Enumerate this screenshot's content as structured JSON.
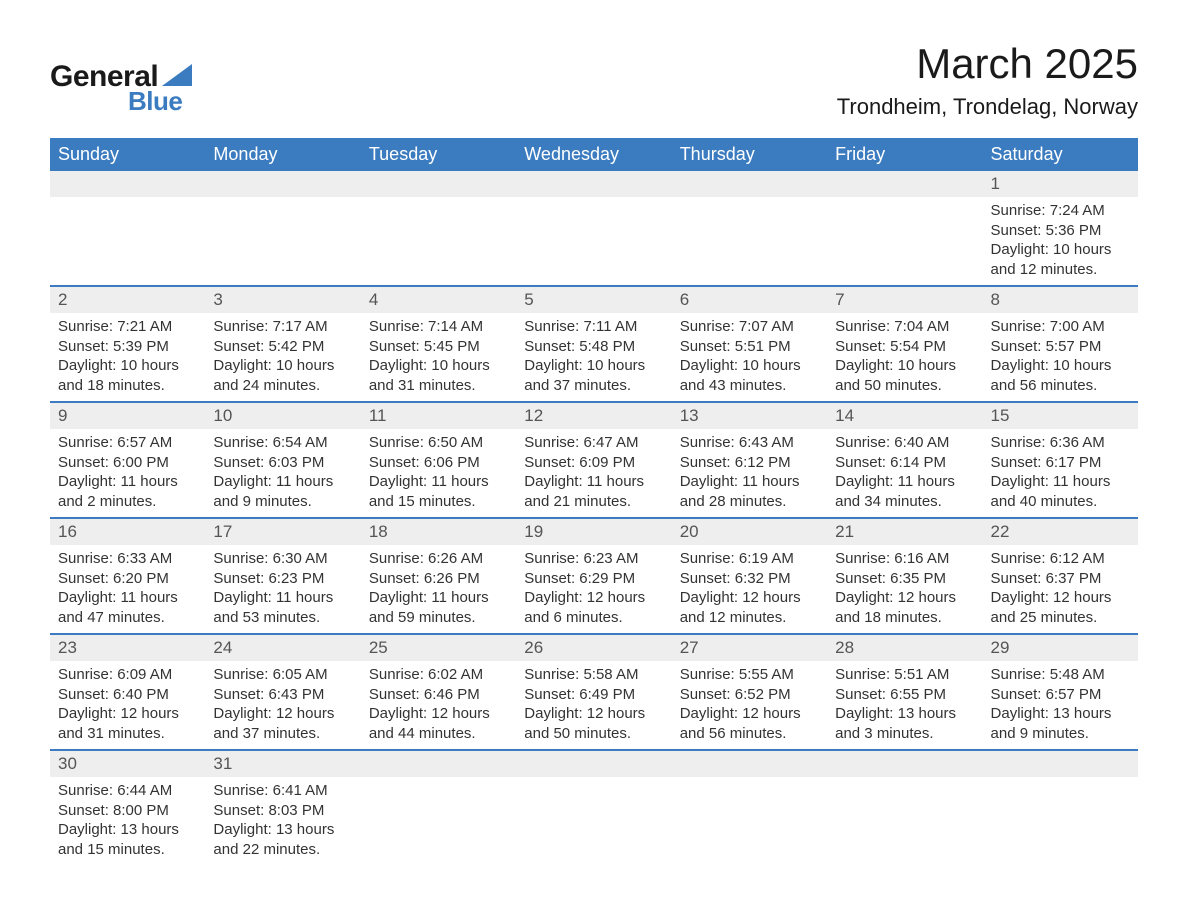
{
  "logo": {
    "text_general": "General",
    "text_blue": "Blue",
    "triangle_color": "#3b7bbf"
  },
  "title": "March 2025",
  "location": "Trondheim, Trondelag, Norway",
  "colors": {
    "header_bg": "#3b7bbf",
    "header_fg": "#ffffff",
    "daynum_bg": "#eeeeee",
    "row_divider": "#3b7bbf"
  },
  "weekdays": [
    "Sunday",
    "Monday",
    "Tuesday",
    "Wednesday",
    "Thursday",
    "Friday",
    "Saturday"
  ],
  "weeks": [
    [
      {
        "empty": true
      },
      {
        "empty": true
      },
      {
        "empty": true
      },
      {
        "empty": true
      },
      {
        "empty": true
      },
      {
        "empty": true
      },
      {
        "num": "1",
        "sunrise": "Sunrise: 7:24 AM",
        "sunset": "Sunset: 5:36 PM",
        "daylight1": "Daylight: 10 hours",
        "daylight2": "and 12 minutes."
      }
    ],
    [
      {
        "num": "2",
        "sunrise": "Sunrise: 7:21 AM",
        "sunset": "Sunset: 5:39 PM",
        "daylight1": "Daylight: 10 hours",
        "daylight2": "and 18 minutes."
      },
      {
        "num": "3",
        "sunrise": "Sunrise: 7:17 AM",
        "sunset": "Sunset: 5:42 PM",
        "daylight1": "Daylight: 10 hours",
        "daylight2": "and 24 minutes."
      },
      {
        "num": "4",
        "sunrise": "Sunrise: 7:14 AM",
        "sunset": "Sunset: 5:45 PM",
        "daylight1": "Daylight: 10 hours",
        "daylight2": "and 31 minutes."
      },
      {
        "num": "5",
        "sunrise": "Sunrise: 7:11 AM",
        "sunset": "Sunset: 5:48 PM",
        "daylight1": "Daylight: 10 hours",
        "daylight2": "and 37 minutes."
      },
      {
        "num": "6",
        "sunrise": "Sunrise: 7:07 AM",
        "sunset": "Sunset: 5:51 PM",
        "daylight1": "Daylight: 10 hours",
        "daylight2": "and 43 minutes."
      },
      {
        "num": "7",
        "sunrise": "Sunrise: 7:04 AM",
        "sunset": "Sunset: 5:54 PM",
        "daylight1": "Daylight: 10 hours",
        "daylight2": "and 50 minutes."
      },
      {
        "num": "8",
        "sunrise": "Sunrise: 7:00 AM",
        "sunset": "Sunset: 5:57 PM",
        "daylight1": "Daylight: 10 hours",
        "daylight2": "and 56 minutes."
      }
    ],
    [
      {
        "num": "9",
        "sunrise": "Sunrise: 6:57 AM",
        "sunset": "Sunset: 6:00 PM",
        "daylight1": "Daylight: 11 hours",
        "daylight2": "and 2 minutes."
      },
      {
        "num": "10",
        "sunrise": "Sunrise: 6:54 AM",
        "sunset": "Sunset: 6:03 PM",
        "daylight1": "Daylight: 11 hours",
        "daylight2": "and 9 minutes."
      },
      {
        "num": "11",
        "sunrise": "Sunrise: 6:50 AM",
        "sunset": "Sunset: 6:06 PM",
        "daylight1": "Daylight: 11 hours",
        "daylight2": "and 15 minutes."
      },
      {
        "num": "12",
        "sunrise": "Sunrise: 6:47 AM",
        "sunset": "Sunset: 6:09 PM",
        "daylight1": "Daylight: 11 hours",
        "daylight2": "and 21 minutes."
      },
      {
        "num": "13",
        "sunrise": "Sunrise: 6:43 AM",
        "sunset": "Sunset: 6:12 PM",
        "daylight1": "Daylight: 11 hours",
        "daylight2": "and 28 minutes."
      },
      {
        "num": "14",
        "sunrise": "Sunrise: 6:40 AM",
        "sunset": "Sunset: 6:14 PM",
        "daylight1": "Daylight: 11 hours",
        "daylight2": "and 34 minutes."
      },
      {
        "num": "15",
        "sunrise": "Sunrise: 6:36 AM",
        "sunset": "Sunset: 6:17 PM",
        "daylight1": "Daylight: 11 hours",
        "daylight2": "and 40 minutes."
      }
    ],
    [
      {
        "num": "16",
        "sunrise": "Sunrise: 6:33 AM",
        "sunset": "Sunset: 6:20 PM",
        "daylight1": "Daylight: 11 hours",
        "daylight2": "and 47 minutes."
      },
      {
        "num": "17",
        "sunrise": "Sunrise: 6:30 AM",
        "sunset": "Sunset: 6:23 PM",
        "daylight1": "Daylight: 11 hours",
        "daylight2": "and 53 minutes."
      },
      {
        "num": "18",
        "sunrise": "Sunrise: 6:26 AM",
        "sunset": "Sunset: 6:26 PM",
        "daylight1": "Daylight: 11 hours",
        "daylight2": "and 59 minutes."
      },
      {
        "num": "19",
        "sunrise": "Sunrise: 6:23 AM",
        "sunset": "Sunset: 6:29 PM",
        "daylight1": "Daylight: 12 hours",
        "daylight2": "and 6 minutes."
      },
      {
        "num": "20",
        "sunrise": "Sunrise: 6:19 AM",
        "sunset": "Sunset: 6:32 PM",
        "daylight1": "Daylight: 12 hours",
        "daylight2": "and 12 minutes."
      },
      {
        "num": "21",
        "sunrise": "Sunrise: 6:16 AM",
        "sunset": "Sunset: 6:35 PM",
        "daylight1": "Daylight: 12 hours",
        "daylight2": "and 18 minutes."
      },
      {
        "num": "22",
        "sunrise": "Sunrise: 6:12 AM",
        "sunset": "Sunset: 6:37 PM",
        "daylight1": "Daylight: 12 hours",
        "daylight2": "and 25 minutes."
      }
    ],
    [
      {
        "num": "23",
        "sunrise": "Sunrise: 6:09 AM",
        "sunset": "Sunset: 6:40 PM",
        "daylight1": "Daylight: 12 hours",
        "daylight2": "and 31 minutes."
      },
      {
        "num": "24",
        "sunrise": "Sunrise: 6:05 AM",
        "sunset": "Sunset: 6:43 PM",
        "daylight1": "Daylight: 12 hours",
        "daylight2": "and 37 minutes."
      },
      {
        "num": "25",
        "sunrise": "Sunrise: 6:02 AM",
        "sunset": "Sunset: 6:46 PM",
        "daylight1": "Daylight: 12 hours",
        "daylight2": "and 44 minutes."
      },
      {
        "num": "26",
        "sunrise": "Sunrise: 5:58 AM",
        "sunset": "Sunset: 6:49 PM",
        "daylight1": "Daylight: 12 hours",
        "daylight2": "and 50 minutes."
      },
      {
        "num": "27",
        "sunrise": "Sunrise: 5:55 AM",
        "sunset": "Sunset: 6:52 PM",
        "daylight1": "Daylight: 12 hours",
        "daylight2": "and 56 minutes."
      },
      {
        "num": "28",
        "sunrise": "Sunrise: 5:51 AM",
        "sunset": "Sunset: 6:55 PM",
        "daylight1": "Daylight: 13 hours",
        "daylight2": "and 3 minutes."
      },
      {
        "num": "29",
        "sunrise": "Sunrise: 5:48 AM",
        "sunset": "Sunset: 6:57 PM",
        "daylight1": "Daylight: 13 hours",
        "daylight2": "and 9 minutes."
      }
    ],
    [
      {
        "num": "30",
        "sunrise": "Sunrise: 6:44 AM",
        "sunset": "Sunset: 8:00 PM",
        "daylight1": "Daylight: 13 hours",
        "daylight2": "and 15 minutes."
      },
      {
        "num": "31",
        "sunrise": "Sunrise: 6:41 AM",
        "sunset": "Sunset: 8:03 PM",
        "daylight1": "Daylight: 13 hours",
        "daylight2": "and 22 minutes."
      },
      {
        "empty": true
      },
      {
        "empty": true
      },
      {
        "empty": true
      },
      {
        "empty": true
      },
      {
        "empty": true
      }
    ]
  ]
}
